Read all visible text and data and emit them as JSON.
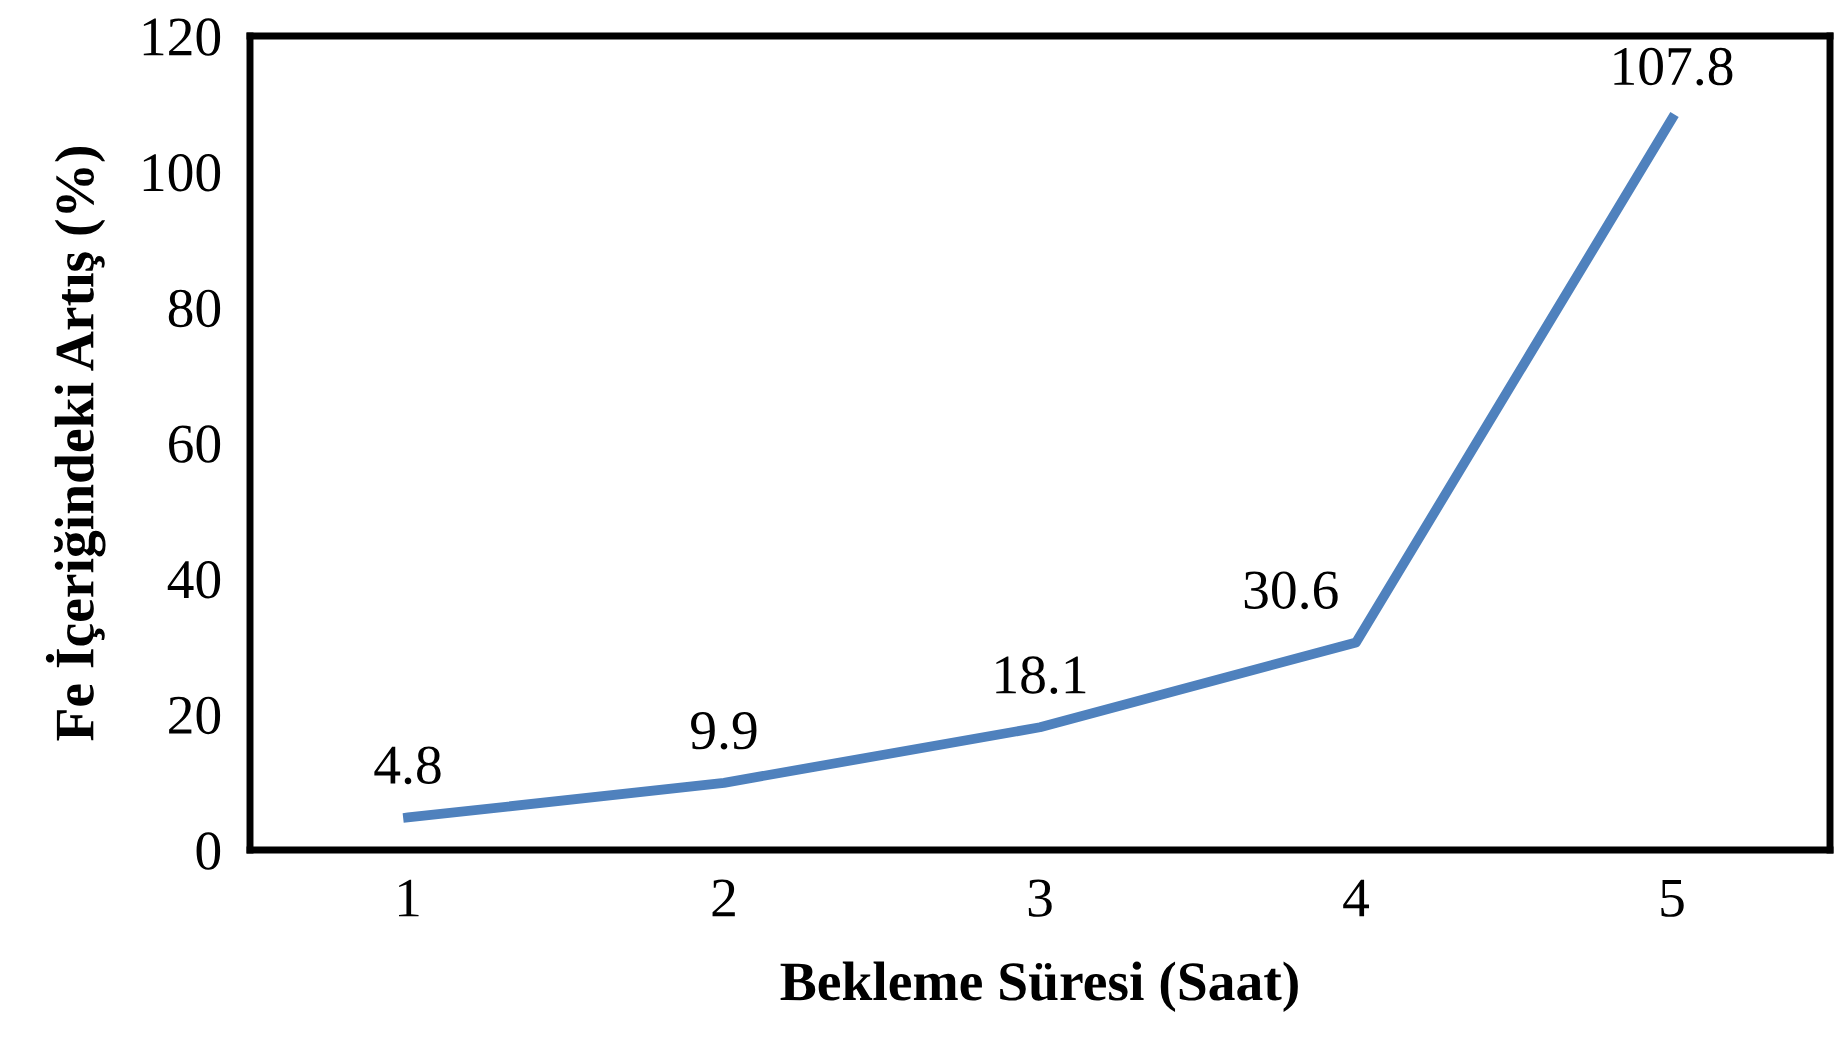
{
  "chart_data": {
    "type": "line",
    "xlabel": "Bekleme Süresi (Saat)",
    "ylabel": "Fe İçeriğindeki Artış (%)",
    "categories": [
      "1",
      "2",
      "3",
      "4",
      "5"
    ],
    "series": [
      {
        "color": "#4f81bd",
        "values": [
          4.8,
          9.9,
          18.1,
          30.6,
          107.8
        ]
      }
    ],
    "ylim": [
      0,
      120
    ],
    "yticks": [
      0,
      20,
      40,
      60,
      80,
      100,
      120
    ],
    "grid": false,
    "marker": "none",
    "line_style": "solid",
    "data_labels": true
  }
}
